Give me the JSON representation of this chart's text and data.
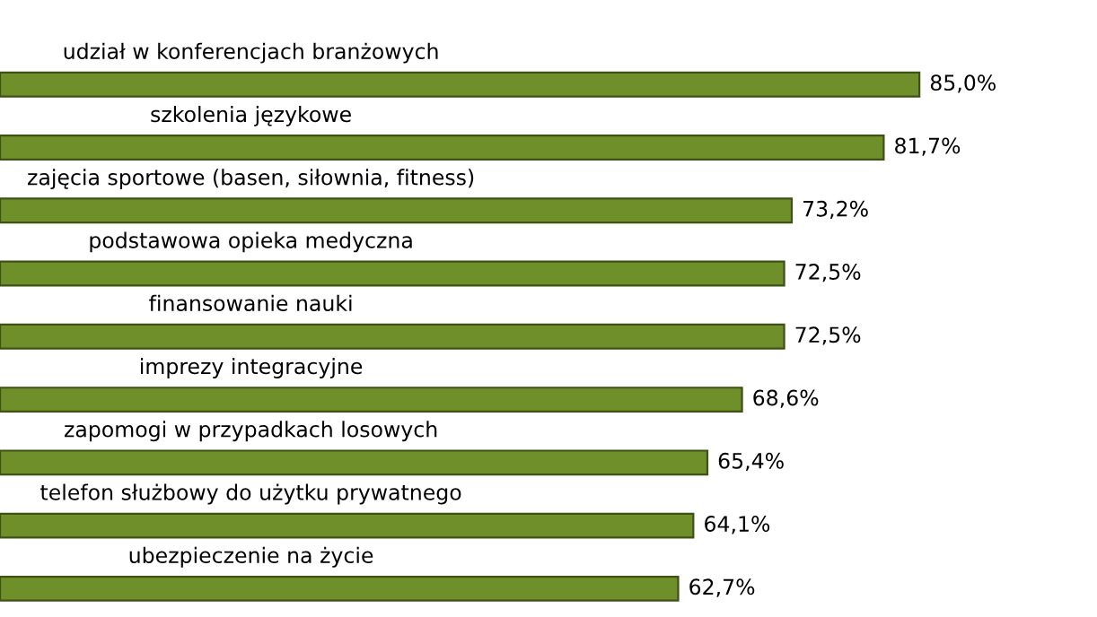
{
  "chart_data": {
    "type": "bar",
    "orientation": "horizontal",
    "categories": [
      "udział w konferencjach branżowych",
      "szkolenia językowe",
      "zajęcia sportowe (basen, siłownia, fitness)",
      "podstawowa opieka medyczna",
      "finansowanie nauki",
      "imprezy integracyjne",
      "zapomogi w przypadkach losowych",
      "telefon służbowy do użytku prywatnego",
      "ubezpieczenie na życie"
    ],
    "values": [
      85.0,
      81.7,
      73.2,
      72.5,
      72.5,
      68.6,
      65.4,
      64.1,
      62.7
    ],
    "value_labels": [
      "85,0%",
      "81,7%",
      "73,2%",
      "72,5%",
      "72,5%",
      "68,6%",
      "65,4%",
      "64,1%",
      "62,7%"
    ],
    "color": "#6f8f2a"
  }
}
